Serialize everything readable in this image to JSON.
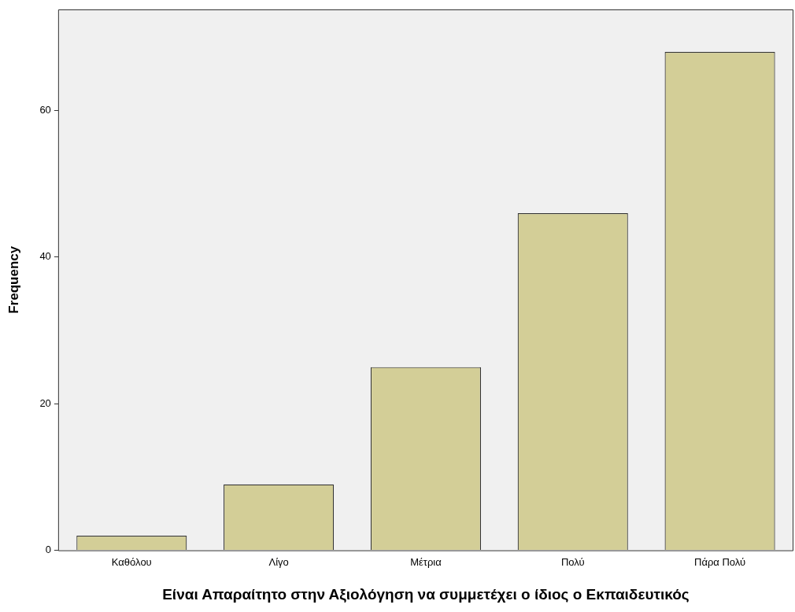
{
  "chart_data": {
    "type": "bar",
    "xlabel": "Είναι Απαραίτητο στην Αξιολόγηση να συμμετέχει ο ίδιος ο Εκπαιδευτικός",
    "ylabel": "Frequency",
    "categories": [
      "Καθόλου",
      "Λίγο",
      "Μέτρια",
      "Πολύ",
      "Πάρα Πολύ"
    ],
    "values": [
      2,
      9,
      25,
      46,
      68
    ],
    "color": "#d3ce97",
    "ylim": [
      0,
      73.8
    ],
    "yticks": [
      0,
      20,
      40,
      60
    ],
    "grid": false,
    "legend": false
  }
}
